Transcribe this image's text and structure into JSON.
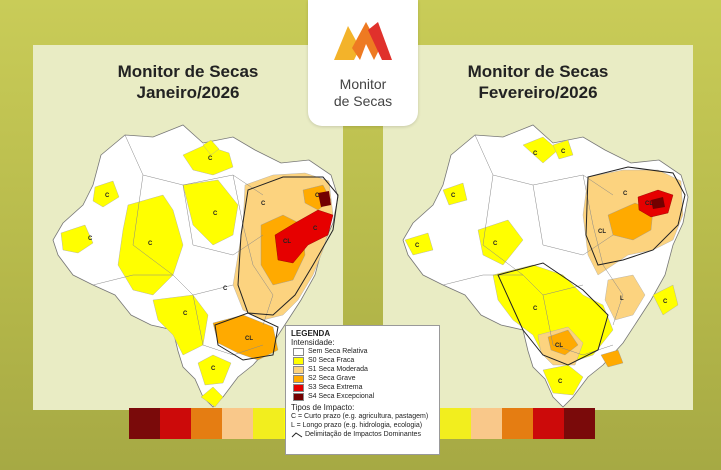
{
  "header": {
    "logo_line1": "Monitor",
    "logo_line2": "de Secas"
  },
  "panels": [
    {
      "title_line1": "Monitor de Secas",
      "title_line2": "Janeiro/2026"
    },
    {
      "title_line1": "Monitor de Secas",
      "title_line2": "Fevereiro/2026"
    }
  ],
  "map_labels": {
    "left": [
      "C",
      "C",
      "C",
      "C",
      "C",
      "C",
      "C",
      "C",
      "CL",
      "CL",
      "C",
      "C",
      "C"
    ],
    "right": [
      "C",
      "C",
      "C",
      "C",
      "CL",
      "C",
      "CL",
      "L",
      "C",
      "C",
      "CL",
      "C",
      "C"
    ]
  },
  "legend": {
    "title": "LEGENDA",
    "intensity_label": "Intensidade:",
    "items": [
      {
        "label": "Sem Seca Relativa",
        "color": "#ffffff"
      },
      {
        "label": "S0 Seca Fraca",
        "color": "#ffff00"
      },
      {
        "label": "S1 Seca Moderada",
        "color": "#fcd37f"
      },
      {
        "label": "S2 Seca Grave",
        "color": "#ffaa00"
      },
      {
        "label": "S3 Seca Extrema",
        "color": "#e60000"
      },
      {
        "label": "S4 Seca Excepcional",
        "color": "#730000"
      }
    ],
    "impact_title": "Tipos de Impacto:",
    "impact_c": "C = Curto prazo (e.g. agricultura, pastagem)",
    "impact_l": "L = Longo prazo (e.g. hidrologia, ecologia)",
    "line_label": "Delimitação de Impactos Dominantes"
  },
  "scale_colors": [
    "#7a0a0a",
    "#cc0a0a",
    "#e57d12",
    "#f9c88a",
    "#f2ee1e",
    "#ffff00",
    "#ffffff",
    "#ffffff",
    "#ffffff",
    "#ffff00",
    "#f2ee1e",
    "#f9c88a",
    "#e57d12",
    "#cc0a0a",
    "#7a0a0a"
  ],
  "colors": {
    "brand_yellow": "#f3b32a",
    "brand_red": "#e0312c",
    "brand_orange": "#ee7a22"
  }
}
